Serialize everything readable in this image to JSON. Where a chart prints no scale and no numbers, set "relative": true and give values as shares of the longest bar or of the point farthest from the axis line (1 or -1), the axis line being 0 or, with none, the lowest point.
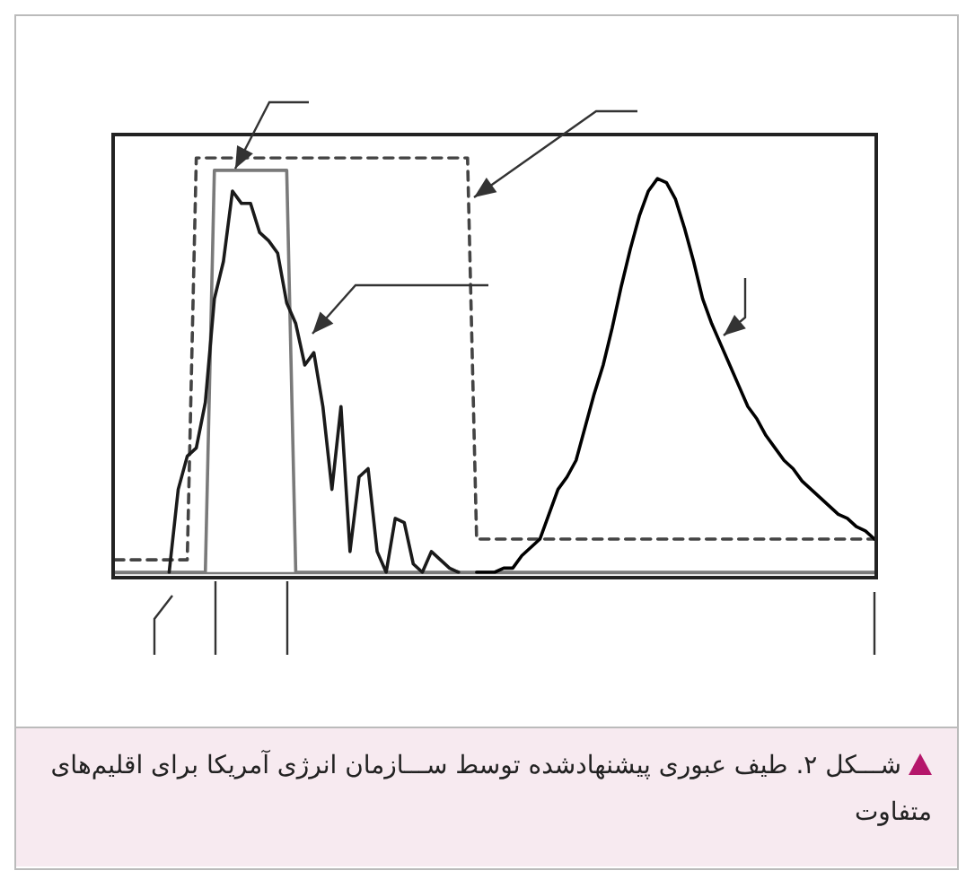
{
  "chart_data": {
    "type": "line",
    "relative": true,
    "marker": "none",
    "grid": false,
    "annotations": [
      "شـــکل ۲. طیف عبوری پیشنهادشده توسط ســـازمان انرژی آمریکا برای اقلیم‌های متفاوت"
    ],
    "categories": [
      null,
      null,
      null,
      null,
      null,
      null,
      null,
      null,
      null,
      null,
      null,
      null,
      null,
      null,
      null,
      null,
      null,
      null,
      null,
      null,
      null,
      null,
      null,
      null,
      null,
      null,
      null,
      null,
      null,
      null,
      null,
      null,
      null,
      null,
      null,
      null,
      null,
      null,
      null,
      null,
      null,
      null,
      null,
      null,
      null,
      null,
      null,
      null,
      null,
      null,
      null,
      null,
      null,
      null,
      null,
      null,
      null,
      null,
      null,
      null,
      null,
      null,
      null,
      null,
      null,
      null,
      null,
      null,
      null,
      null,
      null,
      null,
      null,
      null,
      null,
      null,
      null,
      null,
      null,
      null,
      null,
      null,
      null,
      null,
      null
    ],
    "series": [
      {
        "color": "#7a7a7a",
        "line_style": "solid",
        "values": [
          0,
          0,
          0,
          0,
          0,
          0,
          0,
          0,
          0,
          0,
          0,
          0.97,
          0.97,
          0.97,
          0.97,
          0.97,
          0.97,
          0.97,
          0.97,
          0.97,
          0,
          0,
          0,
          0,
          0,
          0,
          0,
          0,
          0,
          0,
          0,
          0,
          0,
          0,
          0,
          0,
          0,
          0,
          0,
          0,
          0,
          0,
          0,
          0,
          0,
          0,
          0,
          0,
          0,
          0,
          0,
          0,
          0,
          0,
          0,
          0,
          0,
          0,
          0,
          0,
          0,
          0,
          0,
          0,
          0,
          0,
          0,
          0,
          0,
          0,
          0,
          0,
          0,
          0,
          0,
          0,
          0,
          0,
          0,
          0,
          0,
          0,
          0,
          0,
          0
        ]
      },
      {
        "color": "#444444",
        "line_style": "dashed",
        "values": [
          0.03,
          0.03,
          0.03,
          0.03,
          0.03,
          0.03,
          0.03,
          0.03,
          0.03,
          1,
          1,
          1,
          1,
          1,
          1,
          1,
          1,
          1,
          1,
          1,
          1,
          1,
          1,
          1,
          1,
          1,
          1,
          1,
          1,
          1,
          1,
          1,
          1,
          1,
          1,
          1,
          1,
          1,
          1,
          1,
          0.08,
          0.08,
          0.08,
          0.08,
          0.08,
          0.08,
          0.08,
          0.08,
          0.08,
          0.08,
          0.08,
          0.08,
          0.08,
          0.08,
          0.08,
          0.08,
          0.08,
          0.08,
          0.08,
          0.08,
          0.08,
          0.08,
          0.08,
          0.08,
          0.08,
          0.08,
          0.08,
          0.08,
          0.08,
          0.08,
          0.08,
          0.08,
          0.08,
          0.08,
          0.08,
          0.08,
          0.08,
          0.08,
          0.08,
          0.08,
          0.08,
          0.08,
          0.08,
          0.08,
          0.08
        ]
      },
      {
        "color": "#1a1a1a",
        "line_style": "solid",
        "values": [
          null,
          null,
          null,
          null,
          null,
          null,
          0,
          0.2,
          0.28,
          0.3,
          0.41,
          0.66,
          0.75,
          0.92,
          0.89,
          0.89,
          0.82,
          0.8,
          0.77,
          0.65,
          0.6,
          0.5,
          0.53,
          0.4,
          0.2,
          0.4,
          0.05,
          0.23,
          0.25,
          0.05,
          0,
          0.13,
          0.12,
          0.02,
          0,
          0.05,
          0.03,
          0.01,
          0,
          null,
          null,
          null,
          null,
          null,
          null,
          null,
          null,
          null,
          null,
          null,
          null,
          null,
          null,
          null,
          null,
          null,
          null,
          null,
          null,
          null,
          null,
          null,
          null,
          null,
          null,
          null,
          null,
          null,
          null,
          null,
          null,
          null,
          null,
          null,
          null,
          null,
          null,
          null,
          null,
          null,
          null,
          null,
          null,
          null,
          null
        ]
      },
      {
        "color": "#000000",
        "line_style": "solid",
        "values": [
          null,
          null,
          null,
          null,
          null,
          null,
          null,
          null,
          null,
          null,
          null,
          null,
          null,
          null,
          null,
          null,
          null,
          null,
          null,
          null,
          null,
          null,
          null,
          null,
          null,
          null,
          null,
          null,
          null,
          null,
          null,
          null,
          null,
          null,
          null,
          null,
          null,
          null,
          null,
          null,
          0,
          0,
          0,
          0.01,
          0.01,
          0.04,
          0.06,
          0.08,
          0.14,
          0.2,
          0.23,
          0.27,
          0.35,
          0.43,
          0.5,
          0.59,
          0.69,
          0.78,
          0.86,
          0.92,
          0.95,
          0.94,
          0.9,
          0.83,
          0.75,
          0.66,
          0.6,
          0.55,
          0.5,
          0.45,
          0.4,
          0.37,
          0.33,
          0.3,
          0.27,
          0.25,
          0.22,
          0.2,
          0.18,
          0.16,
          0.14,
          0.13,
          0.11,
          0.1,
          0.08
        ]
      }
    ]
  }
}
